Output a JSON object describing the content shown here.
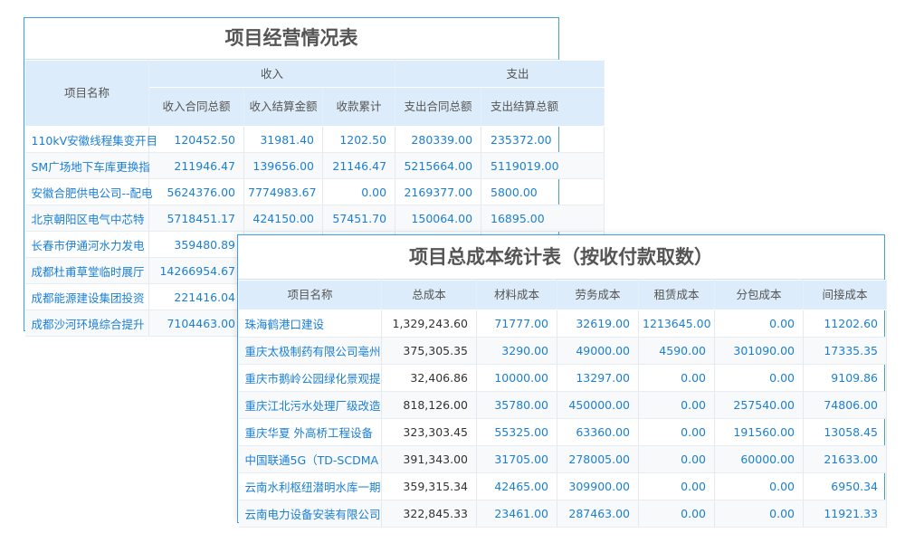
{
  "table1": {
    "title": "项目经营情况表",
    "group_headers": {
      "name": "项目名称",
      "income": "收入",
      "expense": "支出"
    },
    "columns": [
      "收入合同总额",
      "收入结算金额",
      "收款累计",
      "支出合同总额",
      "支出结算总额"
    ],
    "rows": [
      {
        "name": "110kV安徽线程集变开目",
        "values": [
          "120452.50",
          "31981.40",
          "1202.50",
          "280339.00",
          "235372.00"
        ]
      },
      {
        "name": "SM广场地下车库更换指",
        "values": [
          "211946.47",
          "139656.00",
          "21146.47",
          "5215664.00",
          "5119019.00"
        ]
      },
      {
        "name": "安徽合肥供电公司--配电",
        "values": [
          "5624376.00",
          "7774983.67",
          "0.00",
          "2169377.00",
          "5800.00"
        ]
      },
      {
        "name": "北京朝阳区电气中芯特",
        "values": [
          "5718451.17",
          "424150.00",
          "57451.70",
          "150064.00",
          "16895.00"
        ]
      },
      {
        "name": "长春市伊通河水力发电",
        "values": [
          "359480.89",
          "",
          "",
          "",
          ""
        ]
      },
      {
        "name": "成都杜甫草堂临时展厅",
        "values": [
          "14266954.67",
          "",
          "",
          "",
          ""
        ]
      },
      {
        "name": "成都能源建设集团投资",
        "values": [
          "221416.04",
          "",
          "",
          "",
          ""
        ]
      },
      {
        "name": "成都沙河环境综合提升",
        "values": [
          "7104463.00",
          "",
          "",
          "",
          ""
        ]
      }
    ]
  },
  "table2": {
    "title": "项目总成本统计表（按收付款取数）",
    "columns": [
      "项目名称",
      "总成本",
      "材料成本",
      "劳务成本",
      "租赁成本",
      "分包成本",
      "间接成本"
    ],
    "rows": [
      [
        "珠海鹤港口建设",
        "1,329,243.60",
        "71777.00",
        "32619.00",
        "1213645.00",
        "0.00",
        "11202.60"
      ],
      [
        "重庆太极制药有限公司亳州",
        "375,305.35",
        "3290.00",
        "49000.00",
        "4590.00",
        "301090.00",
        "17335.35"
      ],
      [
        "重庆市鹅岭公园绿化景观提",
        "32,406.86",
        "10000.00",
        "13297.00",
        "0.00",
        "0.00",
        "9109.86"
      ],
      [
        "重庆江北污水处理厂级改造",
        "818,126.00",
        "35780.00",
        "450000.00",
        "0.00",
        "257540.00",
        "74806.00"
      ],
      [
        "重庆华夏 外高桥工程设备",
        "323,303.45",
        "55325.00",
        "63360.00",
        "0.00",
        "191560.00",
        "13058.45"
      ],
      [
        "中国联通5G（TD-SCDMA",
        "391,343.00",
        "31705.00",
        "278005.00",
        "0.00",
        "60000.00",
        "21633.00"
      ],
      [
        "云南水利枢纽潜明水库一期",
        "359,315.34",
        "42465.00",
        "309900.00",
        "0.00",
        "0.00",
        "6950.34"
      ],
      [
        "云南电力设备安装有限公司",
        "322,845.33",
        "23461.00",
        "287463.00",
        "0.00",
        "0.00",
        "11921.33"
      ]
    ]
  },
  "colors": {
    "border": "#3ea0e0",
    "header_bg": "#dcecfa",
    "link": "#1a7fd4"
  }
}
